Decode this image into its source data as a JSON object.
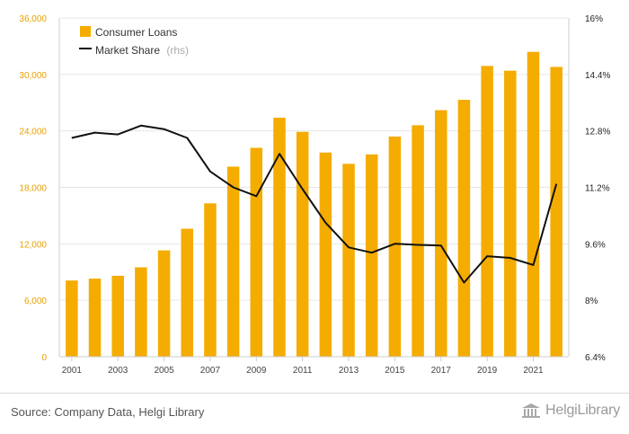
{
  "chart_data": {
    "type": "bar+line",
    "categories": [
      "2001",
      "2002",
      "2003",
      "2004",
      "2005",
      "2006",
      "2007",
      "2008",
      "2009",
      "2010",
      "2011",
      "2012",
      "2013",
      "2014",
      "2015",
      "2016",
      "2017",
      "2018",
      "2019",
      "2020",
      "2021",
      "2022"
    ],
    "series": [
      {
        "name": "Consumer Loans",
        "type": "bar",
        "axis": "left",
        "color": "#f5ac00",
        "values": [
          8100,
          8300,
          8600,
          9500,
          11300,
          13600,
          16300,
          20200,
          22200,
          25400,
          23900,
          21700,
          20500,
          21500,
          23400,
          24600,
          26200,
          27300,
          30900,
          30400,
          32400,
          30800
        ]
      },
      {
        "name": "Market Share",
        "name_suffix": "(rhs)",
        "type": "line",
        "axis": "right",
        "color": "#111111",
        "values": [
          12.6,
          12.75,
          12.7,
          12.95,
          12.85,
          12.6,
          11.65,
          11.2,
          10.95,
          12.15,
          11.15,
          10.2,
          9.5,
          9.35,
          9.6,
          9.57,
          9.55,
          8.5,
          9.25,
          9.2,
          9.0,
          11.3
        ]
      }
    ],
    "x_tick_labels": [
      "2001",
      "2003",
      "2005",
      "2007",
      "2009",
      "2011",
      "2013",
      "2015",
      "2017",
      "2019",
      "2021"
    ],
    "y_left": {
      "ticks": [
        0,
        6000,
        12000,
        18000,
        24000,
        30000,
        36000
      ],
      "tick_labels": [
        "0",
        "6,000",
        "12,000",
        "18,000",
        "24,000",
        "30,000",
        "36,000"
      ],
      "range": [
        0,
        36000
      ]
    },
    "y_right": {
      "ticks": [
        6.4,
        8.0,
        9.6,
        11.2,
        12.8,
        14.4,
        16.0
      ],
      "tick_labels": [
        "6.4%",
        "8%",
        "9.6%",
        "11.2%",
        "12.8%",
        "14.4%",
        "16%"
      ],
      "range": [
        6.4,
        16.0
      ]
    },
    "grid": true,
    "legend_placement": "top-left"
  },
  "colors": {
    "bar": "#f5ac00",
    "line": "#111111",
    "left_tick": "#e8a000",
    "right_tick": "#222222",
    "grid": "#e6e6e6",
    "x_tick": "#444444"
  },
  "footer": {
    "source": "Source: Company Data, Helgi Library",
    "brand": "HelgiLibrary",
    "brand_icon": "library-building-icon"
  }
}
